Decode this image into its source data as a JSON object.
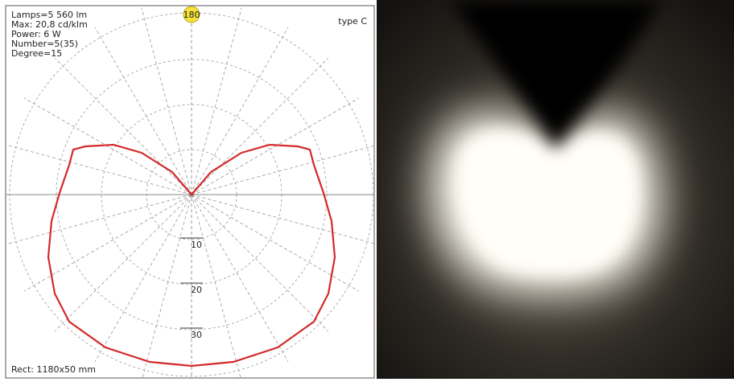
{
  "info": {
    "lines": [
      "Lamps=5 560 lm",
      "Max: 20,8 cd/klm",
      "Power: 6 W",
      "Number=5(35)",
      "Degree=15"
    ],
    "type": "type C"
  },
  "polar": {
    "top_marker": "180",
    "ring_labels": [
      "10",
      "20",
      "30"
    ]
  },
  "footer": "Rect: 1180x50 mm"
}
